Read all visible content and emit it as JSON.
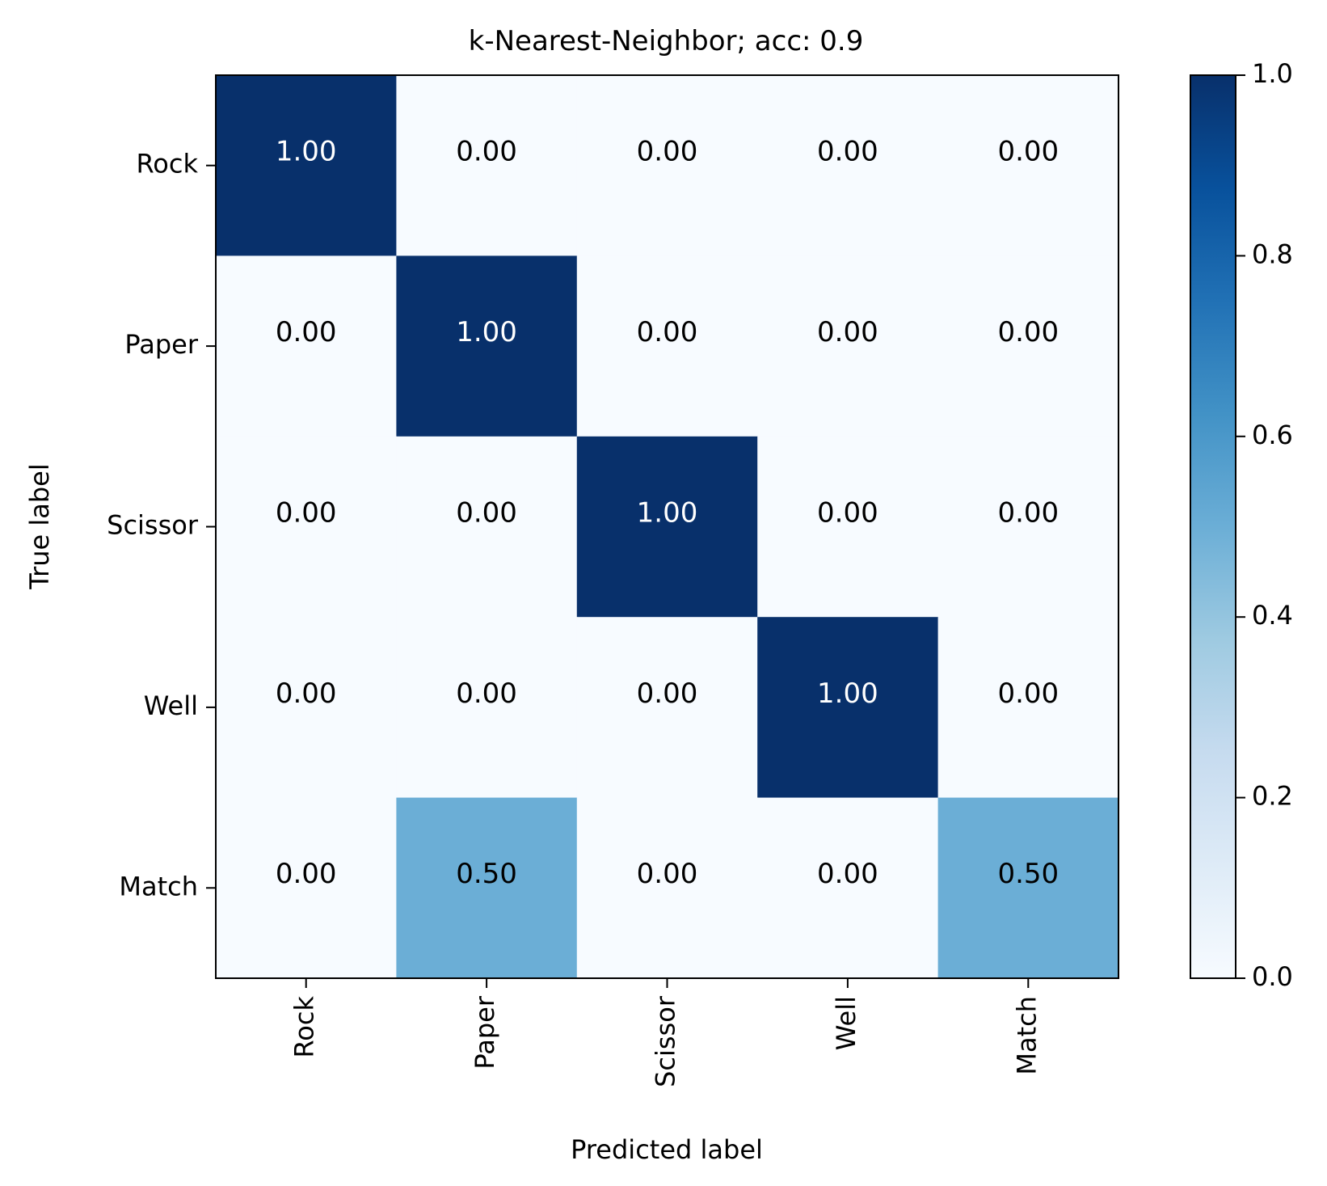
{
  "chart_data": {
    "type": "heatmap",
    "title": "k-Nearest-Neighbor; acc: 0.9",
    "xlabel": "Predicted label",
    "ylabel": "True label",
    "x_categories": [
      "Rock",
      "Paper",
      "Scissor",
      "Well",
      "Match"
    ],
    "y_categories": [
      "Rock",
      "Paper",
      "Scissor",
      "Well",
      "Match"
    ],
    "values": [
      [
        1.0,
        0.0,
        0.0,
        0.0,
        0.0
      ],
      [
        0.0,
        1.0,
        0.0,
        0.0,
        0.0
      ],
      [
        0.0,
        0.0,
        1.0,
        0.0,
        0.0
      ],
      [
        0.0,
        0.0,
        0.0,
        1.0,
        0.0
      ],
      [
        0.0,
        0.5,
        0.0,
        0.0,
        0.5
      ]
    ],
    "cell_labels": [
      [
        "1.00",
        "0.00",
        "0.00",
        "0.00",
        "0.00"
      ],
      [
        "0.00",
        "1.00",
        "0.00",
        "0.00",
        "0.00"
      ],
      [
        "0.00",
        "0.00",
        "1.00",
        "0.00",
        "0.00"
      ],
      [
        "0.00",
        "0.00",
        "0.00",
        "1.00",
        "0.00"
      ],
      [
        "0.00",
        "0.50",
        "0.00",
        "0.00",
        "0.50"
      ]
    ],
    "colorbar": {
      "colormap": "Blues",
      "range": [
        0.0,
        1.0
      ],
      "ticks": [
        "0.0",
        "0.2",
        "0.4",
        "0.6",
        "0.8",
        "1.0"
      ]
    },
    "colors": {
      "low": "#f7fbff",
      "high": "#08306b",
      "text_dark": "#000000",
      "text_light": "#ffffff"
    },
    "grid": false
  }
}
